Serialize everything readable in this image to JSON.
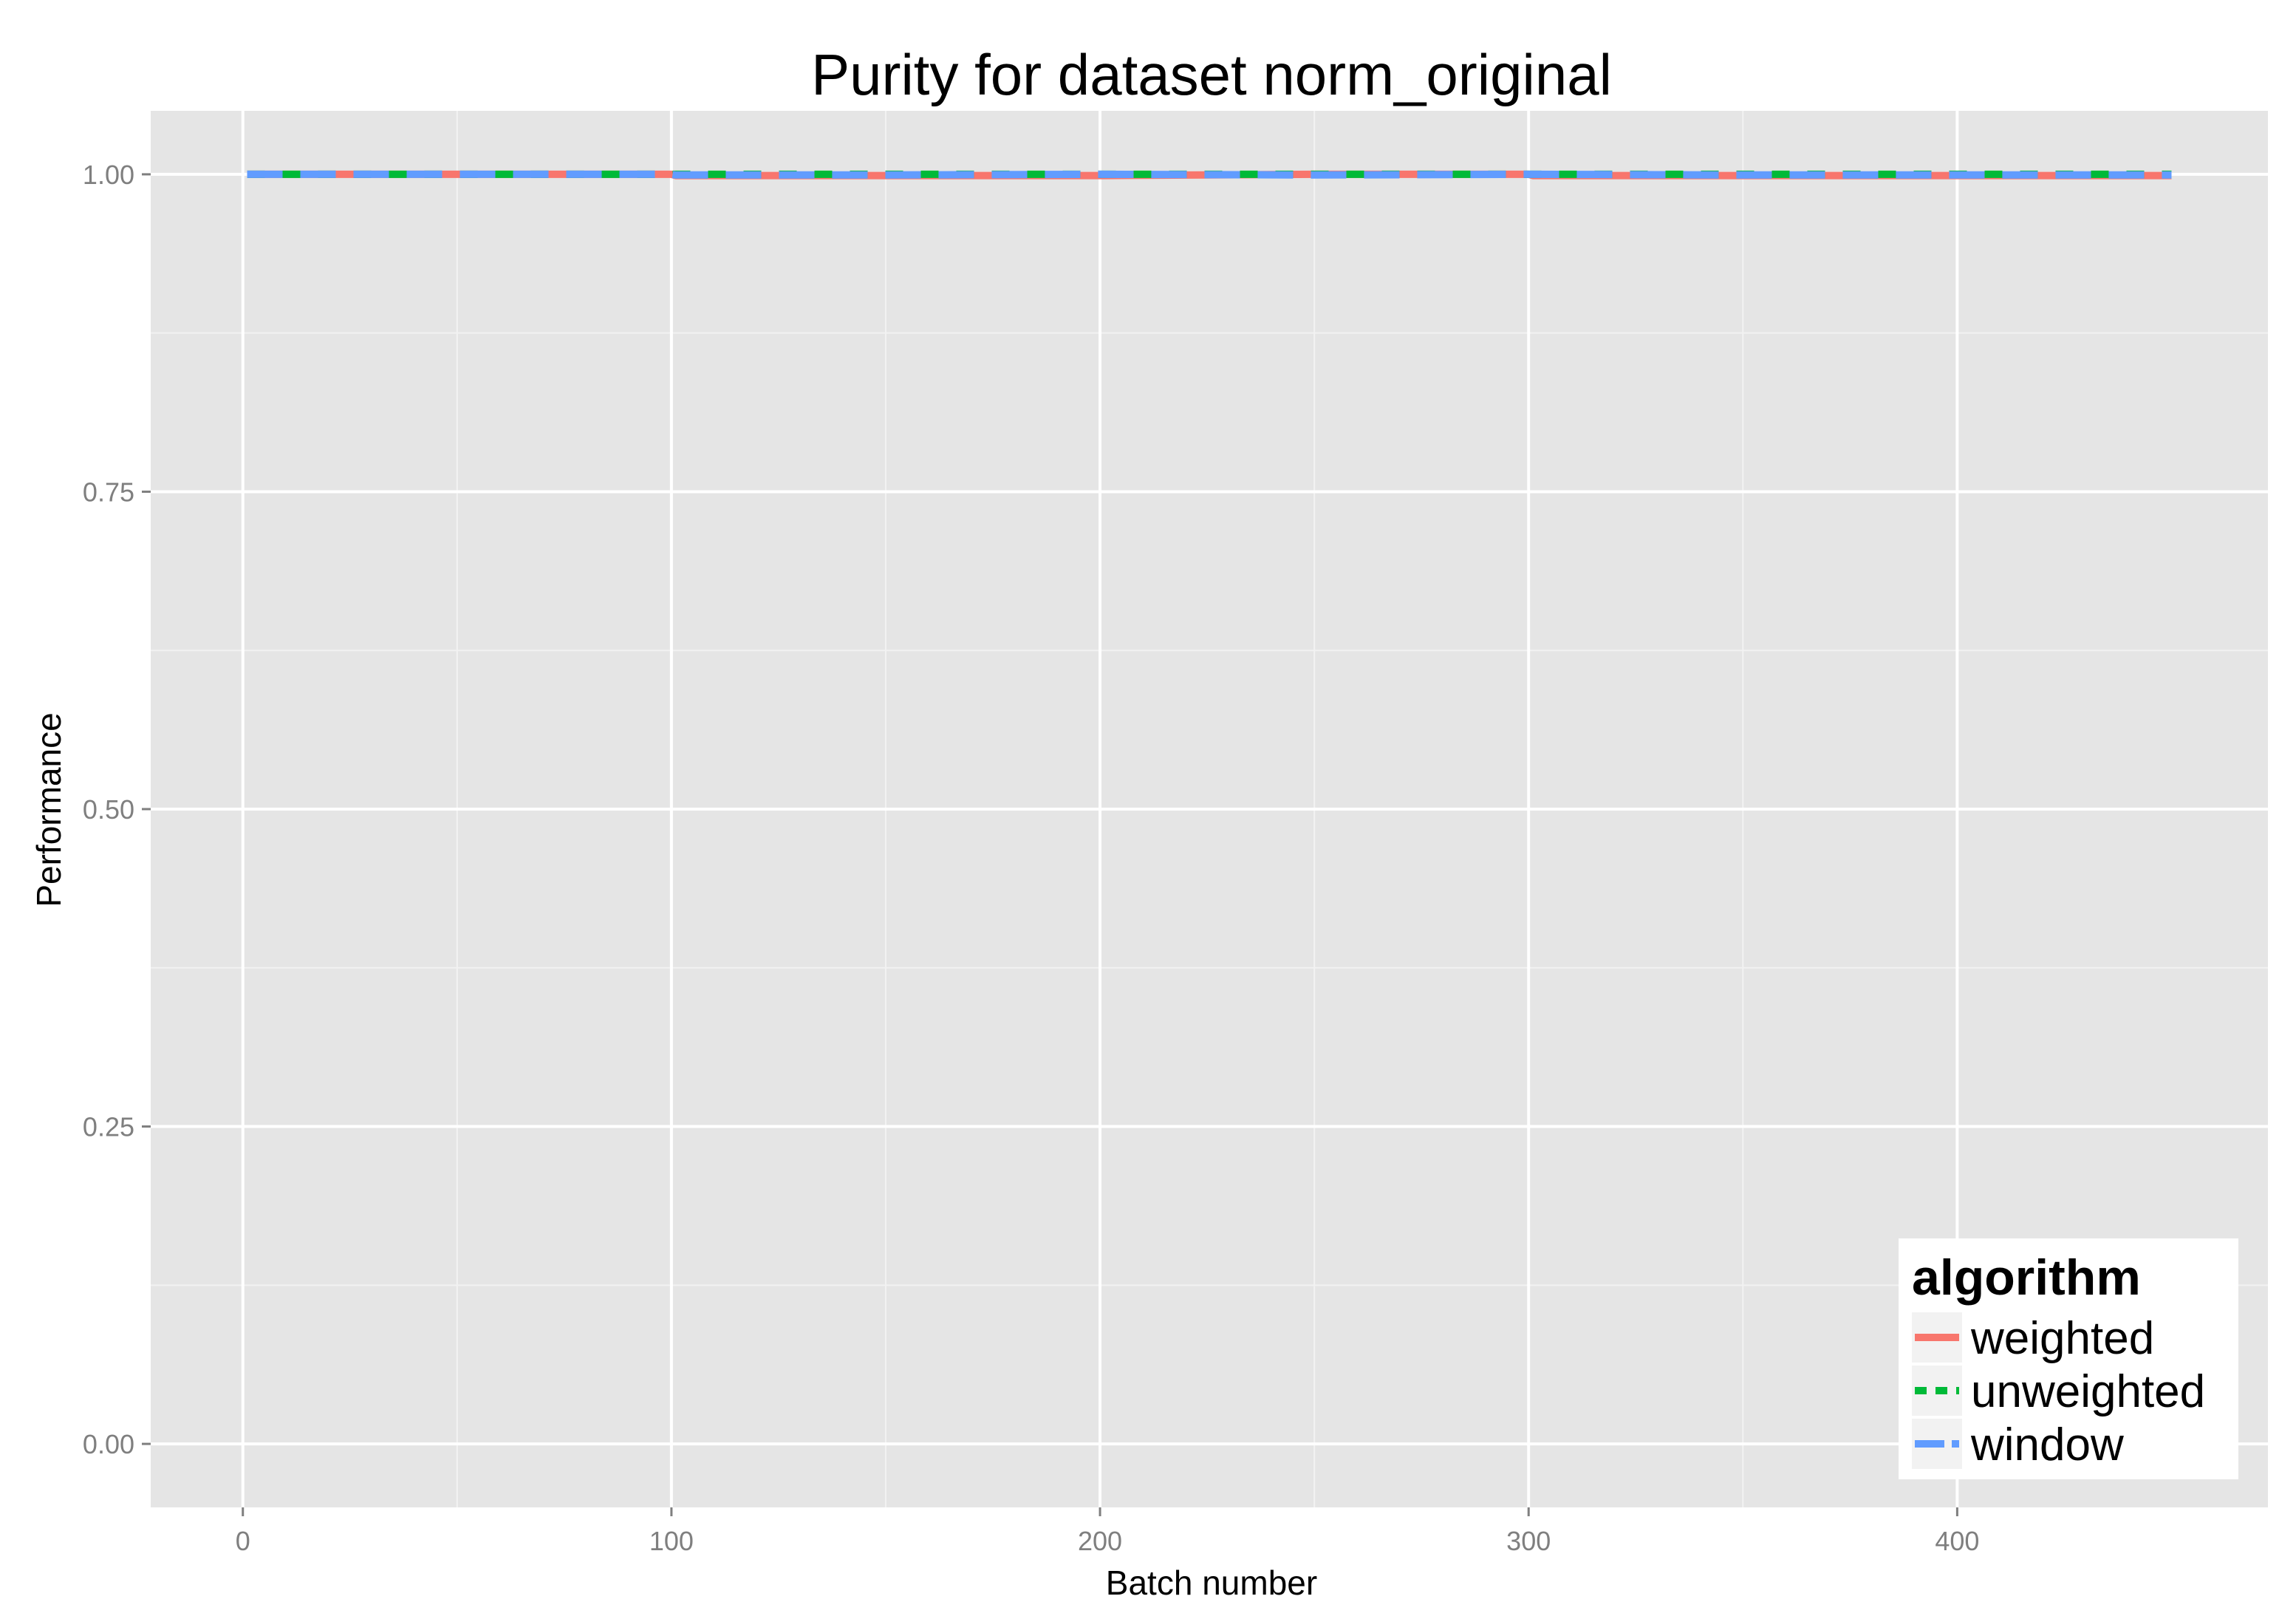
{
  "chart_data": {
    "type": "line",
    "title": "Purity for dataset norm_original",
    "xlabel": "Batch number",
    "ylabel": "Performance",
    "xlim": [
      -21.5,
      472.5
    ],
    "ylim": [
      -0.05,
      1.05
    ],
    "x_ticks": [
      0,
      100,
      200,
      300,
      400
    ],
    "y_ticks": [
      0.0,
      0.25,
      0.5,
      0.75,
      1.0
    ],
    "x_tick_labels": [
      "0",
      "100",
      "200",
      "300",
      "400"
    ],
    "y_tick_labels": [
      "0.00",
      "0.25",
      "0.50",
      "0.75",
      "1.00"
    ],
    "grid": true,
    "background": "#E5E5E5",
    "legend": {
      "title": "algorithm",
      "position": "bottom-right"
    },
    "series": [
      {
        "name": "weighted",
        "color": "#F8766D",
        "dash": "solid",
        "x": [
          1,
          50,
          100,
          101,
          150,
          200,
          201,
          250,
          300,
          301,
          350,
          400,
          401,
          450
        ],
        "y": [
          1.0,
          1.0,
          1.0,
          0.999,
          0.999,
          0.999,
          0.999,
          1.0,
          1.0,
          0.999,
          0.999,
          0.999,
          0.999,
          0.999
        ]
      },
      {
        "name": "unweighted",
        "color": "#00BA38",
        "dash": "dashed",
        "x": [
          1,
          50,
          100,
          101,
          150,
          200,
          250,
          300,
          350,
          400,
          450
        ],
        "y": [
          1.0,
          1.0,
          1.0,
          1.0,
          1.0,
          1.0,
          1.0,
          1.0,
          1.0,
          1.0,
          1.0
        ]
      },
      {
        "name": "window",
        "color": "#619CFF",
        "dash": "longdash",
        "x": [
          1,
          50,
          100,
          101,
          150,
          200,
          250,
          300,
          350,
          400,
          450
        ],
        "y": [
          1.0,
          1.0,
          1.0,
          0.9995,
          0.9995,
          1.0,
          0.9995,
          1.0,
          0.9995,
          0.9995,
          0.9995
        ]
      }
    ]
  }
}
